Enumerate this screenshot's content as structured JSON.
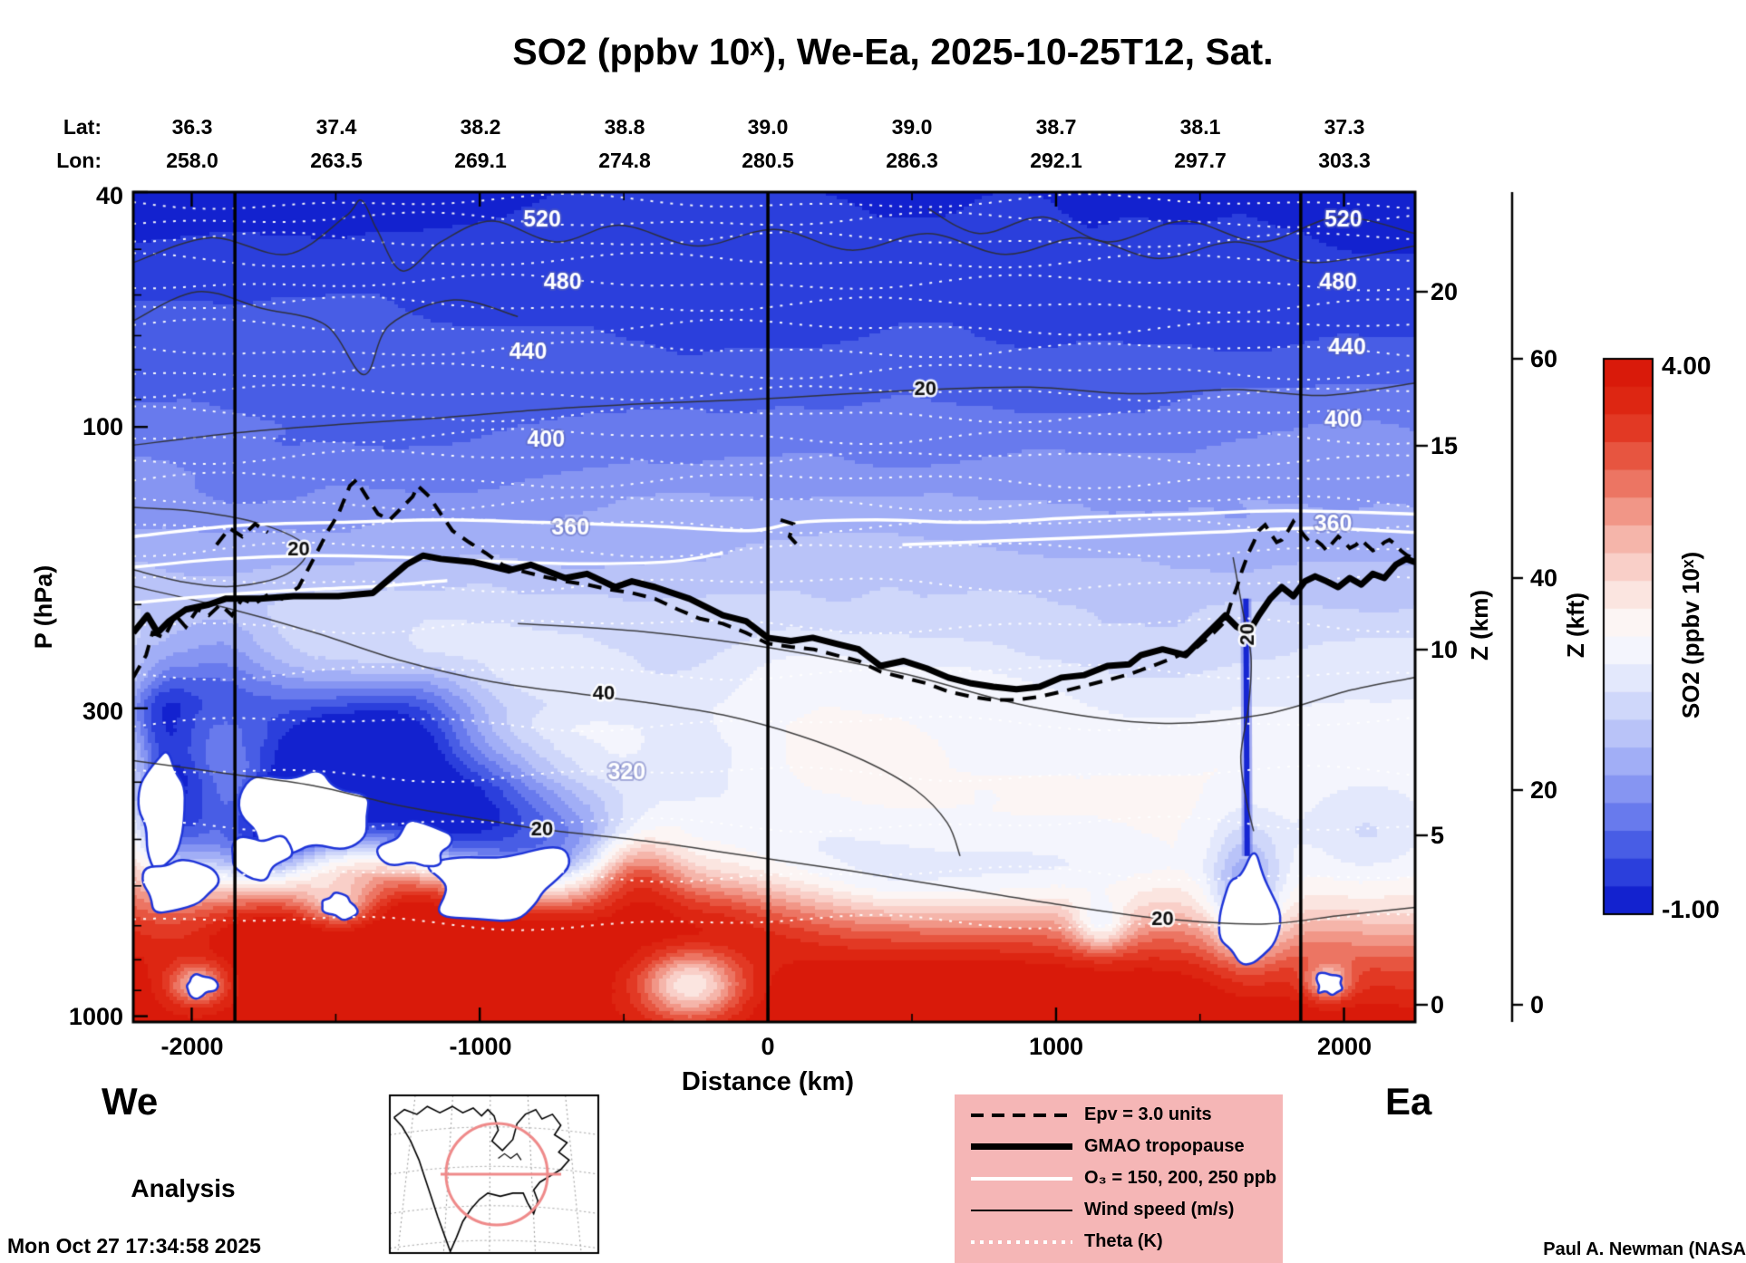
{
  "title": "SO2 (ppbv 10ˣ), We-Ea, 2025-10-25T12, Sat.",
  "top_axis": {
    "lat_label": "Lat:",
    "lon_label": "Lon:",
    "lat_values": [
      "36.3",
      "37.4",
      "38.2",
      "38.8",
      "39.0",
      "39.0",
      "38.7",
      "38.1",
      "37.3"
    ],
    "lon_values": [
      "258.0",
      "263.5",
      "269.1",
      "274.8",
      "280.5",
      "286.3",
      "292.1",
      "297.7",
      "303.3"
    ]
  },
  "axes": {
    "y_left_label": "P (hPa)",
    "y_left_ticks": [
      "40",
      "100",
      "300",
      "1000"
    ],
    "x_label": "Distance (km)",
    "x_ticks": [
      "-2000",
      "-1000",
      "0",
      "1000",
      "2000"
    ],
    "y_right_km_label": "Z (km)",
    "y_right_km_ticks": [
      "20",
      "15",
      "10",
      "5",
      "0"
    ],
    "y_right_kft_label": "Z (kft)",
    "y_right_kft_ticks": [
      "60",
      "40",
      "20",
      "0"
    ]
  },
  "colorbar": {
    "label": "SO2 (ppbv 10ˣ)",
    "max_label": "4.00",
    "min_label": "-1.00"
  },
  "corner_labels": {
    "left": "We",
    "right": "Ea"
  },
  "analysis_label": "Analysis",
  "legend": {
    "items": [
      {
        "label": "Epv = 3.0 units",
        "style": "dashed-black"
      },
      {
        "label": "GMAO tropopause",
        "style": "thick-black"
      },
      {
        "label": "O₃ = 150, 200, 250 ppb",
        "style": "white-solid"
      },
      {
        "label": "Wind speed (m/s)",
        "style": "thin-black"
      },
      {
        "label": "Theta (K)",
        "style": "white-dotted"
      }
    ]
  },
  "footer": {
    "timestamp": "Mon Oct 27 17:34:58 2025",
    "credit": "Paul A. Newman (NASA"
  },
  "colors": {
    "legend_bg": "#f5b6b6",
    "path_red": "#ef8a8a",
    "deep_blue": "#0814c8",
    "deep_red": "#d71608"
  },
  "chart_data": {
    "type": "heatmap",
    "title": "SO2 (ppbv 10ˣ), We-Ea, 2025-10-25T12, Sat.",
    "xlabel": "Distance (km)",
    "ylabel": "P (hPa)",
    "ylabel_right": [
      "Z (km)",
      "Z (kft)"
    ],
    "x_ticks_km": [
      -2000,
      -1000,
      0,
      1000,
      2000
    ],
    "x_range_km": [
      -2200,
      2250
    ],
    "pressure_ticks_hPa": [
      40,
      100,
      300,
      1000
    ],
    "pressure_scale": "log",
    "z_km_ticks": [
      20,
      15,
      10,
      5,
      0
    ],
    "z_kft_ticks": [
      60,
      40,
      20,
      0
    ],
    "section_points": [
      {
        "distance_km": -2000,
        "lat": 36.3,
        "lon": 258.0
      },
      {
        "distance_km": -1500,
        "lat": 37.4,
        "lon": 263.5
      },
      {
        "distance_km": -1000,
        "lat": 38.2,
        "lon": 269.1
      },
      {
        "distance_km": -500,
        "lat": 38.8,
        "lon": 274.8
      },
      {
        "distance_km": 0,
        "lat": 39.0,
        "lon": 280.5
      },
      {
        "distance_km": 500,
        "lat": 39.0,
        "lon": 286.3
      },
      {
        "distance_km": 1000,
        "lat": 38.7,
        "lon": 292.1
      },
      {
        "distance_km": 1500,
        "lat": 38.1,
        "lon": 297.7
      },
      {
        "distance_km": 2000,
        "lat": 37.3,
        "lon": 303.3
      }
    ],
    "colorbar": {
      "quantity": "SO2 (ppbv 10ˣ)",
      "min": -1.0,
      "max": 4.0,
      "palette": "blue-white-red",
      "n_levels": 20
    },
    "vertical_marker_lines_km": [
      -1850,
      0,
      1850
    ],
    "overlays": [
      {
        "name": "Epv = 3.0 units",
        "style": "black dashed line near tropopause"
      },
      {
        "name": "GMAO tropopause",
        "style": "thick black line, ~200-300 hPa"
      },
      {
        "name": "O₃ = 150, 200, 250 ppb",
        "style": "white solid lines in lower stratosphere"
      },
      {
        "name": "Wind speed (m/s)",
        "style": "thin black contours labeled 20 and 40"
      },
      {
        "name": "Theta (K)",
        "style": "white dotted contours labeled 320-520"
      }
    ],
    "theta_labels_K": [
      520,
      480,
      440,
      400,
      360,
      320
    ],
    "wind_labels_ms": [
      20,
      40
    ],
    "plot_annotations": [
      {
        "text": "520",
        "kind": "theta",
        "x": 0.319,
        "y": 0.034
      },
      {
        "text": "480",
        "kind": "theta",
        "x": 0.335,
        "y": 0.109
      },
      {
        "text": "440",
        "kind": "theta",
        "x": 0.308,
        "y": 0.193
      },
      {
        "text": "400",
        "kind": "theta",
        "x": 0.322,
        "y": 0.299
      },
      {
        "text": "360",
        "kind": "theta",
        "x": 0.341,
        "y": 0.405
      },
      {
        "text": "520",
        "kind": "theta",
        "x": 0.944,
        "y": 0.034
      },
      {
        "text": "480",
        "kind": "theta",
        "x": 0.94,
        "y": 0.109
      },
      {
        "text": "440",
        "kind": "theta",
        "x": 0.947,
        "y": 0.188
      },
      {
        "text": "400",
        "kind": "theta",
        "x": 0.944,
        "y": 0.275
      },
      {
        "text": "360",
        "kind": "theta",
        "x": 0.936,
        "y": 0.401
      },
      {
        "text": "320",
        "kind": "theta",
        "x": 0.385,
        "y": 0.7
      },
      {
        "text": "20",
        "kind": "wind",
        "x": 0.129,
        "y": 0.431
      },
      {
        "text": "20",
        "kind": "wind",
        "x": 0.618,
        "y": 0.238
      },
      {
        "text": "40",
        "kind": "wind",
        "x": 0.367,
        "y": 0.605
      },
      {
        "text": "20",
        "kind": "wind",
        "x": 0.319,
        "y": 0.769
      },
      {
        "text": "20",
        "kind": "wind",
        "x": 0.803,
        "y": 0.877
      },
      {
        "text": "20",
        "kind": "wind",
        "x": 0.87,
        "y": 0.533,
        "rot": -90
      }
    ],
    "field_description": "SO2 exponent field: about -0.8 (deep blue) at 40 hPa grading through light blue and white in the mid-troposphere to 3-4 (deep red) in the boundary layer below ~800 hPa; white blue-outlined pockets (below -1) in the lower troposphere between -2000 and -700 km and near +1700 km; narrow deep-blue plume near +1700 km"
  }
}
